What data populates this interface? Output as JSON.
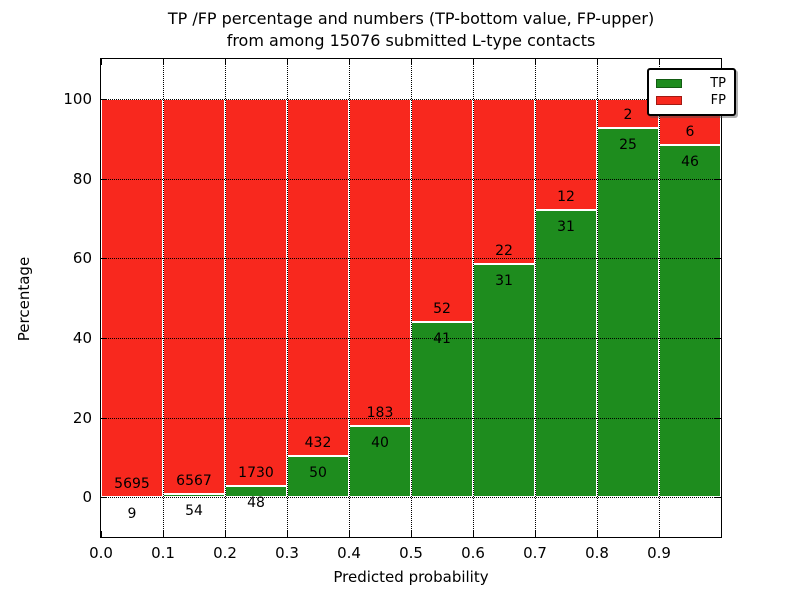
{
  "chart_data": {
    "type": "bar",
    "subtype": "stacked-percentage-histogram",
    "title_line1": "TP /FP percentage and numbers (TP-bottom value, FP-upper)",
    "title_line2": "from among 15076 submitted L-type contacts",
    "xlabel": "Predicted probability",
    "ylabel": "Percentage",
    "total_contacts": 15076,
    "xlim": [
      0.0,
      1.0
    ],
    "ylim": [
      -10,
      110
    ],
    "bin_width": 0.1,
    "x_tick_labels": [
      "0.0",
      "0.1",
      "0.2",
      "0.3",
      "0.4",
      "0.5",
      "0.6",
      "0.7",
      "0.8",
      "0.9"
    ],
    "x_tick_values": [
      0.0,
      0.1,
      0.2,
      0.3,
      0.4,
      0.5,
      0.6,
      0.7,
      0.8,
      0.9
    ],
    "y_tick_values": [
      0,
      20,
      40,
      60,
      80,
      100
    ],
    "grid": "dotted black, drawn above bars",
    "legend": {
      "position": "upper-right",
      "items": [
        {
          "label": "TP",
          "color": "#1e8c1e"
        },
        {
          "label": "FP",
          "color": "#f8281e"
        }
      ]
    },
    "colors": {
      "tp": "#1e8c1e",
      "fp": "#f8281e",
      "bar_edge": "#ffffff",
      "grid": "#000000",
      "text": "#000000",
      "background": "#ffffff"
    },
    "bars": [
      {
        "bin_start": 0.0,
        "tp": 9,
        "fp": 5695
      },
      {
        "bin_start": 0.1,
        "tp": 54,
        "fp": 6567
      },
      {
        "bin_start": 0.2,
        "tp": 48,
        "fp": 1730
      },
      {
        "bin_start": 0.3,
        "tp": 50,
        "fp": 432
      },
      {
        "bin_start": 0.4,
        "tp": 40,
        "fp": 183
      },
      {
        "bin_start": 0.5,
        "tp": 41,
        "fp": 52
      },
      {
        "bin_start": 0.6,
        "tp": 31,
        "fp": 22
      },
      {
        "bin_start": 0.7,
        "tp": 31,
        "fp": 12
      },
      {
        "bin_start": 0.8,
        "tp": 25,
        "fp": 2
      },
      {
        "bin_start": 0.9,
        "tp": 46,
        "fp": 6
      }
    ]
  }
}
